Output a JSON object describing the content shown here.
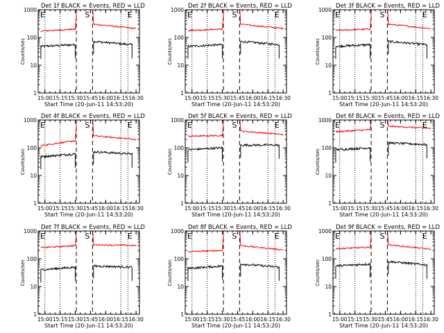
{
  "figure": {
    "xlabel": "Start Time (20-Jun-11 14:53:20)",
    "ylabel": "Counts/sec",
    "x_ticks": [
      "15:00",
      "15:15",
      "15:30",
      "15:45",
      "16:00",
      "16:15",
      "16:30"
    ],
    "y_ticks": [
      "1",
      "10",
      "100",
      "1000"
    ],
    "colors": {
      "events": "#000000",
      "lld": "#ff0000",
      "axes": "#000000"
    }
  },
  "chart_data": [
    {
      "type": "line",
      "title": "Det 1f BLACK = Events, RED = LLD",
      "xlabel": "Start Time (20-Jun-11 14:53:20)",
      "ylabel": "Counts/sec",
      "y_scale": "log",
      "ylim": [
        1,
        1000
      ],
      "xlim": [
        "14:53:20",
        "16:33:20"
      ],
      "markers": [
        {
          "label": "E",
          "time": "14:53:20"
        },
        {
          "label": "S",
          "time": "15:42"
        },
        {
          "label": "E",
          "time": "16:24"
        }
      ],
      "dashed_lines": [
        "15:31",
        "15:47"
      ],
      "dotted_lines": [
        "15:00",
        "15:15",
        "16:15",
        "16:22"
      ],
      "series": [
        {
          "name": "Events",
          "color": "#000000",
          "segments": [
            {
              "x": [
                "14:56",
                "15:30"
              ],
              "y": [
                48,
                55
              ]
            },
            {
              "x": [
                "15:48",
                "16:26"
              ],
              "y": [
                72,
                55
              ]
            }
          ]
        },
        {
          "name": "LLD",
          "color": "#ff0000",
          "segments": [
            {
              "x": [
                "14:56",
                "15:30"
              ],
              "y": [
                170,
                200
              ]
            },
            {
              "x": [
                "15:48",
                "16:30"
              ],
              "y": [
                300,
                210
              ]
            }
          ]
        }
      ]
    },
    {
      "type": "line",
      "title": "Det 2f BLACK = Events, RED = LLD",
      "xlabel": "Start Time (20-Jun-11 14:53:20)",
      "ylabel": "Counts/sec",
      "y_scale": "log",
      "ylim": [
        1,
        1000
      ],
      "xlim": [
        "14:53:20",
        "16:33:20"
      ],
      "markers": [
        {
          "label": "E",
          "time": "14:53:20"
        },
        {
          "label": "S",
          "time": "15:42"
        },
        {
          "label": "E",
          "time": "16:24"
        }
      ],
      "dashed_lines": [
        "15:31",
        "15:47"
      ],
      "dotted_lines": [
        "15:00",
        "15:15",
        "16:15",
        "16:22"
      ],
      "series": [
        {
          "name": "Events",
          "color": "#000000",
          "segments": [
            {
              "x": [
                "14:56",
                "15:30"
              ],
              "y": [
                48,
                55
              ]
            },
            {
              "x": [
                "15:48",
                "16:26"
              ],
              "y": [
                72,
                55
              ]
            }
          ]
        },
        {
          "name": "LLD",
          "color": "#ff0000",
          "segments": [
            {
              "x": [
                "14:56",
                "15:30"
              ],
              "y": [
                180,
                200
              ]
            },
            {
              "x": [
                "15:48",
                "16:30"
              ],
              "y": [
                300,
                210
              ]
            }
          ]
        }
      ]
    },
    {
      "type": "line",
      "title": "Det 3f BLACK = Events, RED = LLD",
      "xlabel": "Start Time (20-Jun-11 14:53:20)",
      "ylabel": "Counts/sec",
      "y_scale": "log",
      "ylim": [
        1,
        1000
      ],
      "xlim": [
        "14:53:20",
        "16:33:20"
      ],
      "markers": [
        {
          "label": "E",
          "time": "14:53:20"
        },
        {
          "label": "S",
          "time": "15:42"
        },
        {
          "label": "E",
          "time": "16:24"
        }
      ],
      "dashed_lines": [
        "15:31",
        "15:47"
      ],
      "dotted_lines": [
        "15:00",
        "15:15",
        "16:15",
        "16:22"
      ],
      "series": [
        {
          "name": "Events",
          "color": "#000000",
          "segments": [
            {
              "x": [
                "14:56",
                "15:30"
              ],
              "y": [
                48,
                55
              ]
            },
            {
              "x": [
                "15:48",
                "16:26"
              ],
              "y": [
                72,
                55
              ]
            }
          ]
        },
        {
          "name": "LLD",
          "color": "#ff0000",
          "segments": [
            {
              "x": [
                "14:56",
                "15:30"
              ],
              "y": [
                180,
                200
              ]
            },
            {
              "x": [
                "15:48",
                "16:30"
              ],
              "y": [
                300,
                210
              ]
            }
          ]
        }
      ]
    },
    {
      "type": "line",
      "title": "Det 4f BLACK = Events, RED = LLD",
      "xlabel": "Start Time (20-Jun-11 14:53:20)",
      "ylabel": "Counts/sec",
      "y_scale": "log",
      "ylim": [
        1,
        1000
      ],
      "xlim": [
        "14:53:20",
        "16:33:20"
      ],
      "markers": [
        {
          "label": "E",
          "time": "14:53:20"
        },
        {
          "label": "S",
          "time": "15:42"
        },
        {
          "label": "E",
          "time": "16:24"
        }
      ],
      "dashed_lines": [
        "15:31",
        "15:47"
      ],
      "dotted_lines": [
        "15:00",
        "15:15",
        "16:15",
        "16:22"
      ],
      "series": [
        {
          "name": "Events",
          "color": "#000000",
          "segments": [
            {
              "x": [
                "14:56",
                "15:30"
              ],
              "y": [
                48,
                60
              ]
            },
            {
              "x": [
                "15:48",
                "16:26"
              ],
              "y": [
                72,
                60
              ]
            }
          ]
        },
        {
          "name": "LLD",
          "color": "#ff0000",
          "segments": [
            {
              "x": [
                "14:56",
                "15:30"
              ],
              "y": [
                120,
                180
              ]
            },
            {
              "x": [
                "15:48",
                "16:30"
              ],
              "y": [
                270,
                200
              ]
            }
          ]
        }
      ]
    },
    {
      "type": "line",
      "title": "Det 5f BLACK = Events, RED = LLD",
      "xlabel": "Start Time (20-Jun-11 14:53:20)",
      "ylabel": "Counts/sec",
      "y_scale": "log",
      "ylim": [
        1,
        1000
      ],
      "xlim": [
        "14:53:20",
        "16:33:20"
      ],
      "markers": [
        {
          "label": "E",
          "time": "14:53:20"
        },
        {
          "label": "S",
          "time": "15:42"
        },
        {
          "label": "E",
          "time": "16:24"
        }
      ],
      "dashed_lines": [
        "15:31",
        "15:47"
      ],
      "dotted_lines": [
        "15:00",
        "15:15",
        "16:15",
        "16:22"
      ],
      "series": [
        {
          "name": "Events",
          "color": "#000000",
          "segments": [
            {
              "x": [
                "14:56",
                "15:30"
              ],
              "y": [
                85,
                100
              ]
            },
            {
              "x": [
                "15:48",
                "16:26"
              ],
              "y": [
                125,
                125
              ]
            }
          ]
        },
        {
          "name": "LLD",
          "color": "#ff0000",
          "segments": [
            {
              "x": [
                "14:56",
                "15:30"
              ],
              "y": [
                260,
                280
              ]
            },
            {
              "x": [
                "15:48",
                "16:30"
              ],
              "y": [
                400,
                300
              ]
            }
          ]
        }
      ]
    },
    {
      "type": "line",
      "title": "Det 6f BLACK = Events, RED = LLD",
      "xlabel": "Start Time (20-Jun-11 14:53:20)",
      "ylabel": "Counts/sec",
      "y_scale": "log",
      "ylim": [
        1,
        1000
      ],
      "xlim": [
        "14:53:20",
        "16:33:20"
      ],
      "markers": [
        {
          "label": "E",
          "time": "14:53:20"
        },
        {
          "label": "S",
          "time": "15:42"
        },
        {
          "label": "E",
          "time": "16:24"
        }
      ],
      "dashed_lines": [
        "15:31",
        "15:47"
      ],
      "dotted_lines": [
        "15:00",
        "15:15",
        "16:15",
        "16:22"
      ],
      "series": [
        {
          "name": "Events",
          "color": "#000000",
          "segments": [
            {
              "x": [
                "14:56",
                "15:30"
              ],
              "y": [
                85,
                100
              ]
            },
            {
              "x": [
                "15:48",
                "16:26"
              ],
              "y": [
                150,
                130
              ]
            }
          ]
        },
        {
          "name": "LLD",
          "color": "#ff0000",
          "segments": [
            {
              "x": [
                "14:56",
                "15:30"
              ],
              "y": [
                380,
                450
              ]
            },
            {
              "x": [
                "15:48",
                "16:30"
              ],
              "y": [
                600,
                500
              ]
            }
          ]
        }
      ]
    },
    {
      "type": "line",
      "title": "Det 7f BLACK = Events, RED = LLD",
      "xlabel": "Start Time (20-Jun-11 14:53:20)",
      "ylabel": "Counts/sec",
      "y_scale": "log",
      "ylim": [
        1,
        1000
      ],
      "xlim": [
        "14:53:20",
        "16:33:20"
      ],
      "markers": [
        {
          "label": "E",
          "time": "14:53:20"
        },
        {
          "label": "S",
          "time": "15:42"
        },
        {
          "label": "E",
          "time": "16:24"
        }
      ],
      "dashed_lines": [
        "15:31",
        "15:47"
      ],
      "dotted_lines": [
        "15:00",
        "15:15",
        "16:15",
        "16:22"
      ],
      "series": [
        {
          "name": "Events",
          "color": "#000000",
          "segments": [
            {
              "x": [
                "14:56",
                "15:30"
              ],
              "y": [
                40,
                50
              ]
            },
            {
              "x": [
                "15:48",
                "16:26"
              ],
              "y": [
                55,
                50
              ]
            }
          ]
        },
        {
          "name": "LLD",
          "color": "#ff0000",
          "segments": [
            {
              "x": [
                "14:56",
                "15:30"
              ],
              "y": [
                250,
                300
              ]
            },
            {
              "x": [
                "15:48",
                "16:30"
              ],
              "y": [
                320,
                300
              ]
            }
          ]
        }
      ]
    },
    {
      "type": "line",
      "title": "Det 8f BLACK = Events, RED = LLD",
      "xlabel": "Start Time (20-Jun-11 14:53:20)",
      "ylabel": "Counts/sec",
      "y_scale": "log",
      "ylim": [
        1,
        1000
      ],
      "xlim": [
        "14:53:20",
        "16:33:20"
      ],
      "markers": [
        {
          "label": "E",
          "time": "14:53:20"
        },
        {
          "label": "S",
          "time": "15:42"
        },
        {
          "label": "E",
          "time": "16:24"
        }
      ],
      "dashed_lines": [
        "15:31",
        "15:47"
      ],
      "dotted_lines": [
        "15:00",
        "15:15",
        "16:15",
        "16:22"
      ],
      "series": [
        {
          "name": "Events",
          "color": "#000000",
          "segments": [
            {
              "x": [
                "14:56",
                "15:30"
              ],
              "y": [
                45,
                55
              ]
            },
            {
              "x": [
                "15:48",
                "16:26"
              ],
              "y": [
                65,
                50
              ]
            }
          ]
        },
        {
          "name": "LLD",
          "color": "#ff0000",
          "segments": [
            {
              "x": [
                "14:56",
                "15:30"
              ],
              "y": [
                180,
                200
              ]
            },
            {
              "x": [
                "15:48",
                "16:30"
              ],
              "y": [
                300,
                210
              ]
            }
          ]
        }
      ]
    },
    {
      "type": "line",
      "title": "Det 9f BLACK = Events, RED = LLD",
      "xlabel": "Start Time (20-Jun-11 14:53:20)",
      "ylabel": "Counts/sec",
      "y_scale": "log",
      "ylim": [
        1,
        1000
      ],
      "xlim": [
        "14:53:20",
        "16:33:20"
      ],
      "markers": [
        {
          "label": "E",
          "time": "14:53:20"
        },
        {
          "label": "S",
          "time": "15:42"
        },
        {
          "label": "E",
          "time": "16:24"
        }
      ],
      "dashed_lines": [
        "15:31",
        "15:47"
      ],
      "dotted_lines": [
        "15:00",
        "15:15",
        "16:15",
        "16:22"
      ],
      "series": [
        {
          "name": "Events",
          "color": "#000000",
          "segments": [
            {
              "x": [
                "14:56",
                "15:30"
              ],
              "y": [
                55,
                65
              ]
            },
            {
              "x": [
                "15:48",
                "16:26"
              ],
              "y": [
                80,
                60
              ]
            }
          ]
        },
        {
          "name": "LLD",
          "color": "#ff0000",
          "segments": [
            {
              "x": [
                "14:56",
                "15:30"
              ],
              "y": [
                230,
                260
              ]
            },
            {
              "x": [
                "15:48",
                "16:30"
              ],
              "y": [
                320,
                220
              ]
            }
          ]
        }
      ]
    }
  ]
}
